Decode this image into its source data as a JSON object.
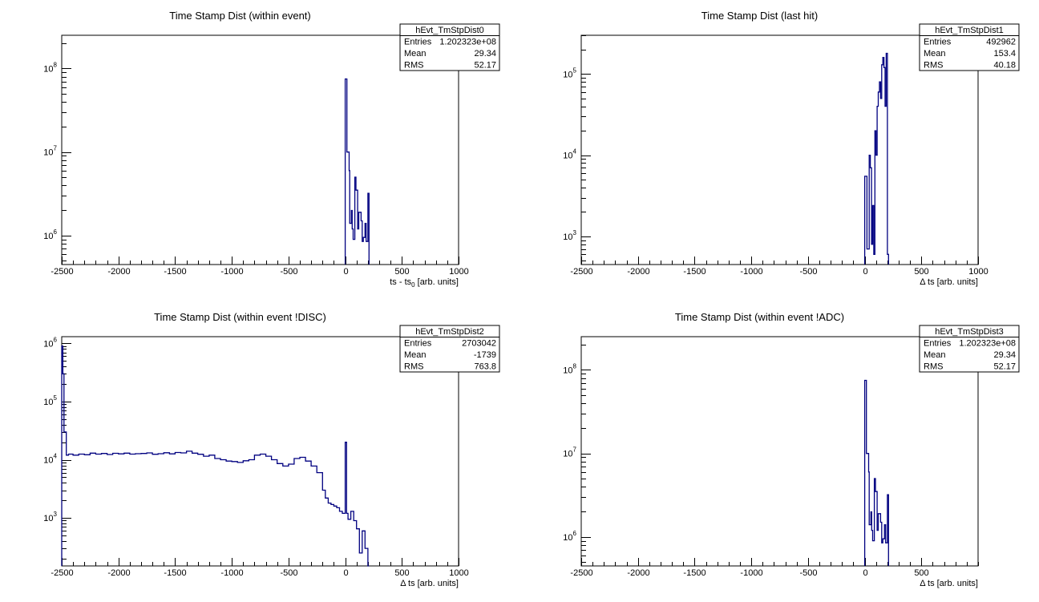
{
  "chart_data": [
    {
      "id": "p0",
      "type": "histogram",
      "title": "Time Stamp Dist (within event)",
      "xlabel": "ts - ts",
      "xlabel_sub": "0",
      "xlabel_tail": " [arb. units]",
      "xlim": [
        -2500,
        1000
      ],
      "ylim": [
        450000,
        250000000
      ],
      "yscale": "log",
      "grid": false,
      "legend_position": "top-right",
      "x_ticks": [
        -2500,
        -2000,
        -1500,
        -1000,
        -500,
        0,
        500,
        1000
      ],
      "x_tick_labels": [
        "-2500",
        "-2000",
        "-1500",
        "-1000",
        "-500",
        "0",
        "500",
        "1000"
      ],
      "y_ticks": [
        1000000,
        10000000,
        100000000
      ],
      "y_tick_base": "10",
      "y_tick_exps": [
        "6",
        "7",
        "8"
      ],
      "stats": {
        "name": "hEvt_TmStpDist0",
        "rows": [
          {
            "label": "Entries",
            "value": "1.202323e+08"
          },
          {
            "label": "Mean",
            "value": "29.34"
          },
          {
            "label": "RMS",
            "value": "52.17"
          }
        ]
      },
      "series": [
        {
          "color": "#000080",
          "edges": [
            0,
            15,
            35,
            40,
            55,
            62,
            70,
            85,
            95,
            110,
            120,
            140,
            150,
            160,
            175,
            185,
            200,
            210
          ],
          "counts": [
            75000000,
            10000000,
            6000000,
            1400000,
            2000000,
            1200000,
            900000,
            5000000,
            3500000,
            1200000,
            1900000,
            1500000,
            850000,
            950000,
            1400000,
            850000,
            3200000
          ]
        }
      ]
    },
    {
      "id": "p1",
      "type": "histogram",
      "title": "Time Stamp Dist (last hit)",
      "xlabel": "Δ ts [arb. units]",
      "xlim": [
        -2500,
        1000
      ],
      "ylim": [
        450,
        300000
      ],
      "yscale": "log",
      "grid": false,
      "legend_position": "top-right",
      "x_ticks": [
        -2500,
        -2000,
        -1500,
        -1000,
        -500,
        0,
        500,
        1000
      ],
      "x_tick_labels": [
        "-2500",
        "-2000",
        "-1500",
        "-1000",
        "-500",
        "0",
        "500",
        "1000"
      ],
      "y_ticks": [
        1000,
        10000,
        100000
      ],
      "y_tick_base": "10",
      "y_tick_exps": [
        "3",
        "4",
        "5"
      ],
      "stats": {
        "name": "hEvt_TmStpDist1",
        "rows": [
          {
            "label": "Entries",
            "value": "492962"
          },
          {
            "label": "Mean",
            "value": "153.4"
          },
          {
            "label": "RMS",
            "value": "40.18"
          }
        ]
      },
      "series": [
        {
          "color": "#000080",
          "edges": [
            0,
            20,
            40,
            50,
            60,
            70,
            80,
            90,
            100,
            110,
            120,
            130,
            140,
            150,
            160,
            170,
            180,
            190,
            200,
            210
          ],
          "counts": [
            5500,
            700,
            10000,
            7000,
            800,
            2400,
            600,
            20000,
            10000,
            40000,
            60000,
            80000,
            50000,
            130000,
            160000,
            120000,
            40000,
            180000,
            600
          ]
        }
      ]
    },
    {
      "id": "p2",
      "type": "histogram",
      "title": "Time Stamp Dist (within event !DISC)",
      "xlabel": "Δ ts [arb. units]",
      "xlim": [
        -2500,
        1000
      ],
      "ylim": [
        150,
        1300000
      ],
      "yscale": "log",
      "grid": false,
      "legend_position": "top-right",
      "x_ticks": [
        -2500,
        -2000,
        -1500,
        -1000,
        -500,
        0,
        500,
        1000
      ],
      "x_tick_labels": [
        "-2500",
        "-2000",
        "-1500",
        "-1000",
        "-500",
        "0",
        "500",
        "1000"
      ],
      "y_ticks": [
        1000,
        10000,
        100000,
        1000000
      ],
      "y_tick_base": "10",
      "y_tick_exps": [
        "3",
        "4",
        "5",
        "6"
      ],
      "stats": {
        "name": "hEvt_TmStpDist2",
        "rows": [
          {
            "label": "Entries",
            "value": "2703042"
          },
          {
            "label": "Mean",
            "value": "-1739"
          },
          {
            "label": "RMS",
            "value": "763.8"
          }
        ]
      },
      "series": [
        {
          "color": "#000080",
          "edges": [
            -2500,
            -2490,
            -2480,
            -2460,
            -2440,
            -2400,
            -2350,
            -2300,
            -2250,
            -2200,
            -2150,
            -2100,
            -2050,
            -2000,
            -1950,
            -1900,
            -1850,
            -1800,
            -1750,
            -1700,
            -1650,
            -1600,
            -1550,
            -1500,
            -1450,
            -1400,
            -1350,
            -1300,
            -1250,
            -1200,
            -1150,
            -1100,
            -1050,
            -1000,
            -950,
            -900,
            -850,
            -800,
            -750,
            -700,
            -650,
            -600,
            -550,
            -500,
            -450,
            -400,
            -350,
            -300,
            -250,
            -200,
            -175,
            -150,
            -125,
            -100,
            -75,
            -50,
            -25,
            0,
            12,
            25,
            50,
            75,
            100,
            125,
            150,
            175,
            200,
            210
          ],
          "counts": [
            900000,
            300000,
            30000,
            12000,
            12500,
            12000,
            12500,
            12200,
            13000,
            12500,
            12800,
            12300,
            12900,
            12600,
            13000,
            12500,
            12700,
            12800,
            13100,
            12400,
            12700,
            13200,
            12600,
            13300,
            13100,
            14000,
            13000,
            12400,
            11500,
            12000,
            10500,
            10000,
            9500,
            9300,
            9000,
            9600,
            10000,
            12000,
            12500,
            11500,
            10000,
            8600,
            7800,
            8400,
            10500,
            11000,
            9500,
            7800,
            6000,
            3000,
            2200,
            1800,
            1700,
            1600,
            1500,
            1300,
            1200,
            20000,
            1200,
            950,
            1300,
            900,
            650,
            250,
            600,
            300,
            150
          ]
        }
      ]
    },
    {
      "id": "p3",
      "type": "histogram",
      "title": "Time Stamp Dist (within event !ADC)",
      "xlabel": "Δ ts [arb. units]",
      "xlim": [
        -2500,
        1000
      ],
      "ylim": [
        450000,
        250000000
      ],
      "yscale": "log",
      "grid": false,
      "legend_position": "top-right",
      "x_ticks": [
        -2500,
        -2000,
        -1500,
        -1000,
        -500,
        0,
        500
      ],
      "x_tick_labels": [
        "-2500",
        "-2000",
        "-1500",
        "-1000",
        "-500",
        "0",
        "500"
      ],
      "y_ticks": [
        1000000,
        10000000,
        100000000
      ],
      "y_tick_base": "10",
      "y_tick_exps": [
        "6",
        "7",
        "8"
      ],
      "stats": {
        "name": "hEvt_TmStpDist3",
        "rows": [
          {
            "label": "Entries",
            "value": "1.202323e+08"
          },
          {
            "label": "Mean",
            "value": "29.34"
          },
          {
            "label": "RMS",
            "value": "52.17"
          }
        ]
      },
      "series": [
        {
          "color": "#000080",
          "edges": [
            0,
            15,
            35,
            40,
            55,
            62,
            70,
            85,
            95,
            110,
            120,
            140,
            150,
            160,
            175,
            185,
            200,
            210
          ],
          "counts": [
            75000000,
            10000000,
            6000000,
            1400000,
            2000000,
            1200000,
            900000,
            5000000,
            3500000,
            1200000,
            1900000,
            1500000,
            850000,
            950000,
            1400000,
            850000,
            3200000
          ]
        }
      ]
    }
  ]
}
